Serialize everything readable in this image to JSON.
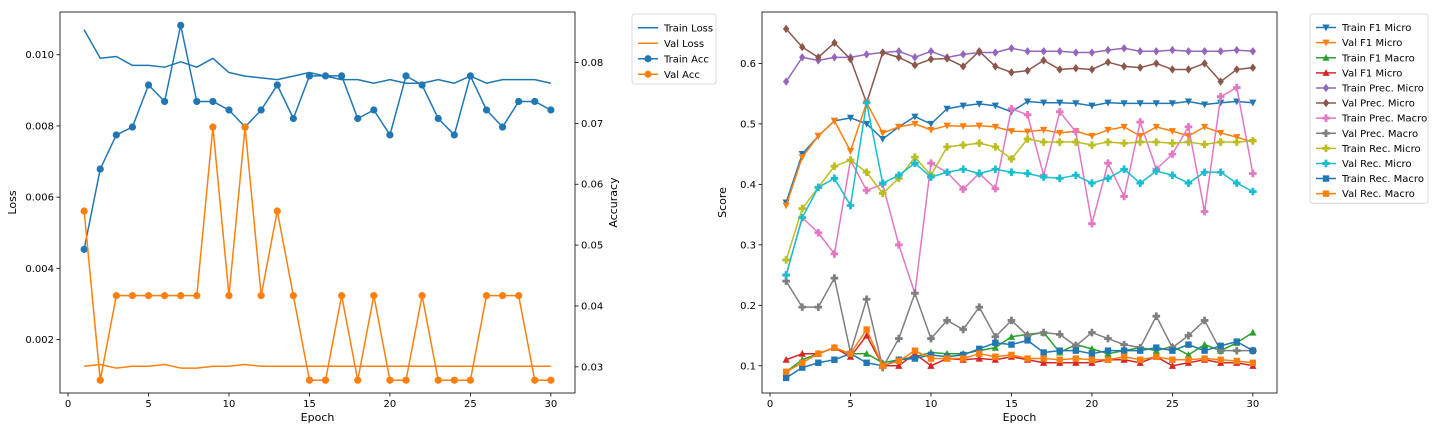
{
  "chart_data": [
    {
      "type": "line",
      "xlabel": "Epoch",
      "ylabel": "Loss",
      "ylabel_right": "Accuracy",
      "x": [
        1,
        2,
        3,
        4,
        5,
        6,
        7,
        8,
        9,
        10,
        11,
        12,
        13,
        14,
        15,
        16,
        17,
        18,
        19,
        20,
        21,
        22,
        23,
        24,
        25,
        26,
        27,
        28,
        29,
        30
      ],
      "xlim": [
        -0.5,
        31.5
      ],
      "ylim": [
        0.0005,
        0.0112
      ],
      "ylim_right": [
        0.0257,
        0.0883
      ],
      "xticks": [
        "0",
        "5",
        "10",
        "15",
        "20",
        "25",
        "30"
      ],
      "yticks": [
        "0.002",
        "0.004",
        "0.006",
        "0.008",
        "0.010"
      ],
      "yticks_right": [
        "0.03",
        "0.04",
        "0.05",
        "0.06",
        "0.07",
        "0.08"
      ],
      "legend_position": "upper right, outside",
      "series": [
        {
          "name": "Train Loss",
          "axis": "left",
          "color": "#1f77b4",
          "marker": "none",
          "values": [
            0.0107,
            0.0099,
            0.00995,
            0.0097,
            0.0097,
            0.00965,
            0.0098,
            0.00965,
            0.0099,
            0.0095,
            0.0094,
            0.00935,
            0.0093,
            0.0094,
            0.0095,
            0.0094,
            0.0093,
            0.0093,
            0.0092,
            0.0093,
            0.0092,
            0.0092,
            0.0093,
            0.0092,
            0.0094,
            0.0092,
            0.0093,
            0.0093,
            0.0093,
            0.0092
          ]
        },
        {
          "name": "Val Loss",
          "axis": "left",
          "color": "#ff7f0e",
          "marker": "none",
          "values": [
            0.00125,
            0.0013,
            0.0012,
            0.00125,
            0.00125,
            0.0013,
            0.0012,
            0.0012,
            0.00125,
            0.00125,
            0.0013,
            0.00125,
            0.00125,
            0.00125,
            0.00125,
            0.00125,
            0.00125,
            0.00125,
            0.00125,
            0.00125,
            0.00125,
            0.00125,
            0.00125,
            0.00125,
            0.00125,
            0.00125,
            0.00125,
            0.00125,
            0.00125,
            0.00125
          ]
        },
        {
          "name": "Train Acc",
          "axis": "right",
          "color": "#1f77b4",
          "marker": "circle",
          "values": [
            0.0493,
            0.0625,
            0.0681,
            0.0694,
            0.0763,
            0.0736,
            0.0861,
            0.0736,
            0.0736,
            0.0722,
            0.0694,
            0.0722,
            0.0763,
            0.0708,
            0.0778,
            0.0778,
            0.0778,
            0.0708,
            0.0722,
            0.0681,
            0.0778,
            0.0763,
            0.0708,
            0.0681,
            0.0778,
            0.0722,
            0.0694,
            0.0736,
            0.0736,
            0.0722
          ]
        },
        {
          "name": "Val Acc",
          "axis": "right",
          "color": "#ff7f0e",
          "marker": "circle",
          "values": [
            0.0556,
            0.0278,
            0.0417,
            0.0417,
            0.0417,
            0.0417,
            0.0417,
            0.0417,
            0.0694,
            0.0417,
            0.0694,
            0.0417,
            0.0556,
            0.0417,
            0.0278,
            0.0278,
            0.0417,
            0.0278,
            0.0417,
            0.0278,
            0.0278,
            0.0417,
            0.0278,
            0.0278,
            0.0278,
            0.0417,
            0.0417,
            0.0417,
            0.0278,
            0.0278
          ]
        }
      ]
    },
    {
      "type": "line",
      "xlabel": "Epoch",
      "ylabel": "Score",
      "x": [
        1,
        2,
        3,
        4,
        5,
        6,
        7,
        8,
        9,
        10,
        11,
        12,
        13,
        14,
        15,
        16,
        17,
        18,
        19,
        20,
        21,
        22,
        23,
        24,
        25,
        26,
        27,
        28,
        29,
        30
      ],
      "xlim": [
        -0.5,
        31.5
      ],
      "ylim": [
        0.055,
        0.685
      ],
      "xticks": [
        "0",
        "5",
        "10",
        "15",
        "20",
        "25",
        "30"
      ],
      "yticks": [
        "0.1",
        "0.2",
        "0.3",
        "0.4",
        "0.5",
        "0.6"
      ],
      "legend_position": "upper right, outside",
      "series": [
        {
          "name": "Train F1 Micro",
          "color": "#1f77b4",
          "marker": "triangle-down",
          "values": [
            0.37,
            0.45,
            0.48,
            0.505,
            0.51,
            0.5,
            0.475,
            0.495,
            0.512,
            0.5,
            0.525,
            0.53,
            0.533,
            0.53,
            0.52,
            0.537,
            0.535,
            0.535,
            0.534,
            0.53,
            0.535,
            0.534,
            0.534,
            0.534,
            0.534,
            0.537,
            0.532,
            0.535,
            0.537,
            0.535
          ]
        },
        {
          "name": "Val F1 Micro",
          "color": "#ff7f0e",
          "marker": "triangle-down",
          "values": [
            0.365,
            0.445,
            0.48,
            0.505,
            0.455,
            0.535,
            0.485,
            0.495,
            0.5,
            0.49,
            0.497,
            0.496,
            0.497,
            0.495,
            0.488,
            0.487,
            0.49,
            0.485,
            0.488,
            0.48,
            0.49,
            0.495,
            0.48,
            0.495,
            0.488,
            0.48,
            0.495,
            0.485,
            0.478,
            0.47
          ]
        },
        {
          "name": "Train F1 Macro",
          "color": "#2ca02c",
          "marker": "triangle-up",
          "values": [
            0.09,
            0.11,
            0.12,
            0.13,
            0.12,
            0.12,
            0.105,
            0.11,
            0.115,
            0.122,
            0.12,
            0.12,
            0.125,
            0.13,
            0.148,
            0.152,
            0.155,
            0.122,
            0.135,
            0.128,
            0.12,
            0.125,
            0.13,
            0.125,
            0.132,
            0.118,
            0.135,
            0.125,
            0.138,
            0.155
          ]
        },
        {
          "name": "Val F1 Micro",
          "color": "#d62728",
          "marker": "triangle-up",
          "values": [
            0.11,
            0.12,
            0.12,
            0.13,
            0.115,
            0.15,
            0.1,
            0.1,
            0.12,
            0.1,
            0.112,
            0.11,
            0.112,
            0.11,
            0.115,
            0.11,
            0.105,
            0.105,
            0.105,
            0.105,
            0.11,
            0.11,
            0.105,
            0.115,
            0.1,
            0.105,
            0.11,
            0.105,
            0.105,
            0.1
          ]
        },
        {
          "name": "Train Prec. Micro",
          "color": "#9467bd",
          "marker": "diamond",
          "values": [
            0.57,
            0.61,
            0.605,
            0.61,
            0.61,
            0.615,
            0.618,
            0.62,
            0.61,
            0.62,
            0.61,
            0.615,
            0.618,
            0.618,
            0.625,
            0.62,
            0.62,
            0.62,
            0.618,
            0.618,
            0.622,
            0.625,
            0.62,
            0.62,
            0.622,
            0.62,
            0.62,
            0.62,
            0.622,
            0.62
          ]
        },
        {
          "name": "Val Prec. Micro",
          "color": "#8c564b",
          "marker": "diamond",
          "values": [
            0.657,
            0.627,
            0.61,
            0.634,
            0.607,
            0.535,
            0.618,
            0.61,
            0.597,
            0.607,
            0.608,
            0.595,
            0.62,
            0.595,
            0.585,
            0.588,
            0.605,
            0.59,
            0.592,
            0.59,
            0.602,
            0.595,
            0.593,
            0.6,
            0.59,
            0.59,
            0.6,
            0.57,
            0.59,
            0.593
          ]
        },
        {
          "name": "Train Prec. Macro",
          "color": "#e377c2",
          "marker": "plus",
          "values": [
            0.25,
            0.345,
            0.32,
            0.285,
            0.44,
            0.39,
            0.4,
            0.3,
            0.22,
            0.435,
            0.42,
            0.392,
            0.418,
            0.393,
            0.525,
            0.515,
            0.415,
            0.52,
            0.487,
            0.335,
            0.435,
            0.38,
            0.503,
            0.425,
            0.45,
            0.495,
            0.355,
            0.545,
            0.56,
            0.418
          ]
        },
        {
          "name": "Val Prec. Macro",
          "color": "#7f7f7f",
          "marker": "plus",
          "values": [
            0.24,
            0.197,
            0.197,
            0.245,
            0.122,
            0.21,
            0.097,
            0.145,
            0.22,
            0.145,
            0.175,
            0.16,
            0.197,
            0.148,
            0.175,
            0.15,
            0.155,
            0.152,
            0.133,
            0.155,
            0.145,
            0.135,
            0.13,
            0.182,
            0.13,
            0.15,
            0.175,
            0.125,
            0.125,
            0.125
          ]
        },
        {
          "name": "Train Rec. Micro",
          "color": "#bcbd22",
          "marker": "plus",
          "values": [
            0.275,
            0.36,
            0.395,
            0.43,
            0.44,
            0.42,
            0.385,
            0.41,
            0.445,
            0.415,
            0.462,
            0.465,
            0.468,
            0.462,
            0.442,
            0.475,
            0.47,
            0.47,
            0.47,
            0.465,
            0.47,
            0.468,
            0.47,
            0.47,
            0.468,
            0.47,
            0.466,
            0.47,
            0.47,
            0.472
          ]
        },
        {
          "name": "Val Rec. Micro",
          "color": "#17becf",
          "marker": "plus",
          "values": [
            0.25,
            0.345,
            0.395,
            0.41,
            0.365,
            0.535,
            0.402,
            0.415,
            0.435,
            0.412,
            0.42,
            0.425,
            0.418,
            0.425,
            0.42,
            0.418,
            0.412,
            0.41,
            0.415,
            0.402,
            0.41,
            0.425,
            0.402,
            0.422,
            0.415,
            0.402,
            0.42,
            0.42,
            0.402,
            0.388
          ]
        },
        {
          "name": "Train Rec. Macro",
          "color": "#1f77b4",
          "marker": "square",
          "values": [
            0.08,
            0.097,
            0.105,
            0.11,
            0.12,
            0.105,
            0.1,
            0.11,
            0.112,
            0.118,
            0.115,
            0.118,
            0.128,
            0.138,
            0.135,
            0.142,
            0.122,
            0.125,
            0.125,
            0.12,
            0.125,
            0.125,
            0.125,
            0.13,
            0.125,
            0.135,
            0.125,
            0.133,
            0.14,
            0.125
          ]
        },
        {
          "name": "Val Rec. Macro",
          "color": "#ff7f0e",
          "marker": "square",
          "values": [
            0.09,
            0.105,
            0.12,
            0.13,
            0.12,
            0.16,
            0.1,
            0.108,
            0.125,
            0.112,
            0.112,
            0.112,
            0.12,
            0.115,
            0.118,
            0.112,
            0.112,
            0.11,
            0.112,
            0.11,
            0.11,
            0.115,
            0.11,
            0.115,
            0.11,
            0.11,
            0.112,
            0.11,
            0.108,
            0.105
          ]
        }
      ]
    }
  ]
}
